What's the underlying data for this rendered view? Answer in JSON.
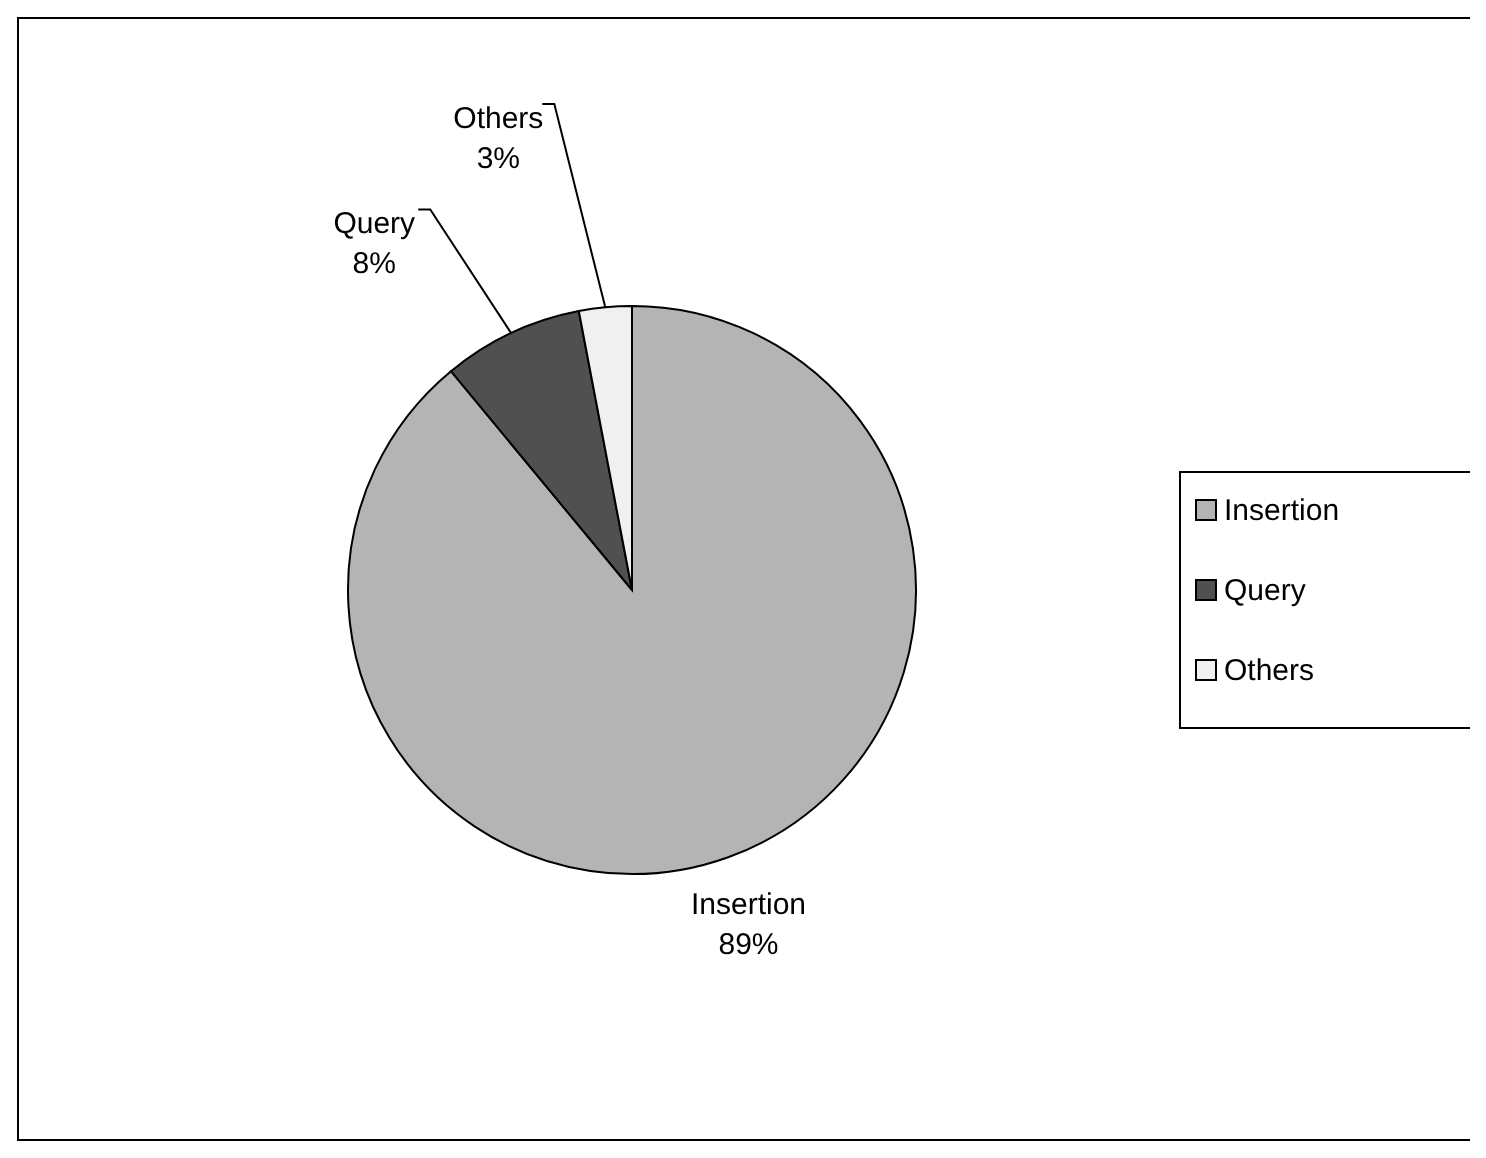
{
  "chart_data": {
    "type": "pie",
    "categories": [
      "Insertion",
      "Query",
      "Others"
    ],
    "values": [
      89,
      8,
      3
    ],
    "value_labels": [
      "89%",
      "8%",
      "3%"
    ],
    "colors": [
      "#b4b4b4",
      "#505050",
      "#f0f0f0"
    ],
    "legend": "right"
  }
}
